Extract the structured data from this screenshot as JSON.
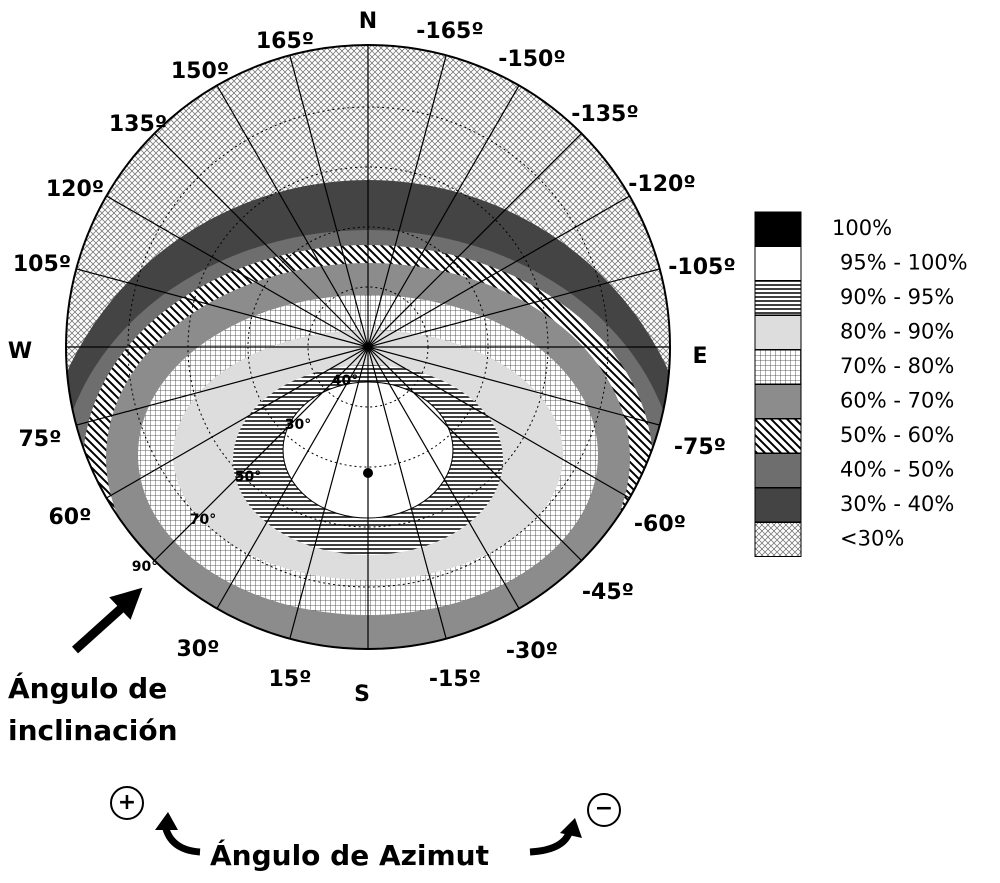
{
  "compass": {
    "north": "N",
    "south": "S",
    "east": "E",
    "west": "W"
  },
  "azimuth_labels": [
    "165º",
    "150º",
    "135º",
    "120º",
    "105º",
    "75º",
    "60º",
    "30º",
    "15º",
    "-165º",
    "-150º",
    "-135º",
    "-120º",
    "-105º",
    "-75º",
    "-60º",
    "-45º",
    "-30º",
    "-15º"
  ],
  "inclination_labels": [
    "40°",
    "30°",
    "50°",
    "70°",
    "90°"
  ],
  "legend": [
    "100%",
    "95% - 100%",
    "90% - 95%",
    "80% - 90%",
    "70% - 80%",
    "60% - 70%",
    "50% - 60%",
    "40% - 50%",
    "30% - 40%",
    "<30%"
  ],
  "annotations": {
    "inclination_axis": [
      "Ángulo de",
      "inclinación"
    ],
    "azimuth_axis": "Ángulo de Azimut",
    "positive": "+",
    "negative": "−"
  }
}
